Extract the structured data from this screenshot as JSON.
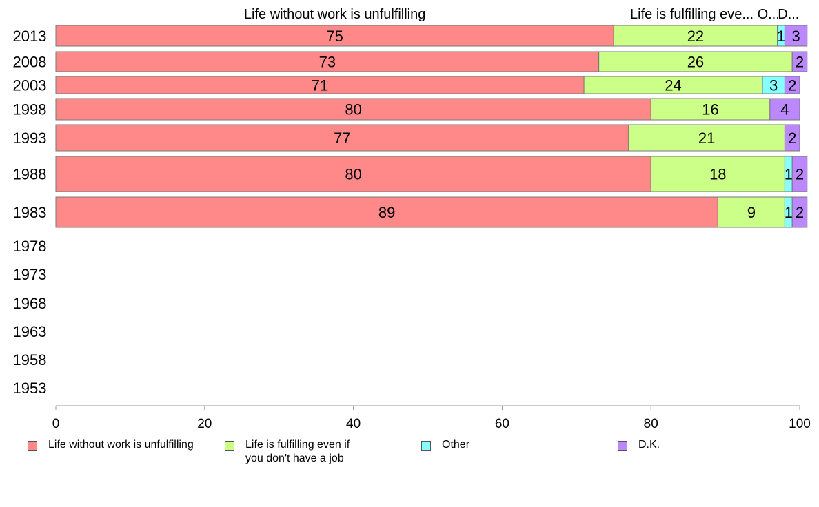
{
  "chart_data": {
    "type": "bar",
    "orientation": "horizontal",
    "stacked": true,
    "categories": [
      "2013",
      "2008",
      "2003",
      "1998",
      "1993",
      "1988",
      "1983",
      "1978",
      "1973",
      "1968",
      "1963",
      "1958",
      "1953"
    ],
    "series": [
      {
        "name": "Life without work is unfulfilling",
        "color": "#ff8888",
        "values": [
          75,
          73,
          71,
          80,
          77,
          80,
          89,
          null,
          null,
          null,
          null,
          null,
          null
        ],
        "labels": [
          "75",
          "73",
          "71",
          "80",
          "77",
          "80",
          "89",
          "",
          "",
          "",
          "",
          "",
          ""
        ]
      },
      {
        "name": "Life is fulfilling even if you don't have a job",
        "color": "#ccff88",
        "values": [
          22,
          26,
          24,
          16,
          21,
          18,
          9,
          null,
          null,
          null,
          null,
          null,
          null
        ],
        "labels": [
          "22",
          "26",
          "24",
          "16",
          "21",
          "18",
          "9",
          "",
          "",
          "",
          "",
          "",
          ""
        ]
      },
      {
        "name": "Other",
        "color": "#88ffff",
        "values": [
          1,
          0,
          3,
          0,
          0,
          1,
          1,
          null,
          null,
          null,
          null,
          null,
          null
        ],
        "labels": [
          "1",
          "",
          "3",
          "",
          "",
          "1",
          "1",
          "",
          "",
          "",
          "",
          "",
          ""
        ]
      },
      {
        "name": "D.K.",
        "color": "#bb88ff",
        "values": [
          3,
          2,
          2,
          4,
          2,
          2,
          2,
          null,
          null,
          null,
          null,
          null,
          null
        ],
        "labels": [
          "3",
          "2",
          "2",
          "4",
          "2",
          "2",
          "2",
          "",
          "",
          "",
          "",
          "",
          ""
        ]
      }
    ],
    "top_labels": [
      {
        "text": "Life without work is unfulfilling",
        "x": 37.5
      },
      {
        "text": "Life is fulfilling eve...",
        "x": 85.5
      },
      {
        "text": "O...",
        "x": 95.8
      },
      {
        "text": "D...",
        "x": 98.5
      }
    ],
    "xlim": [
      0,
      100
    ],
    "xticks": [
      0,
      20,
      40,
      60,
      80,
      100
    ],
    "xlabel": "",
    "ylabel": "",
    "title": "",
    "grid": false,
    "legend_position": "bottom"
  },
  "legend": {
    "items": [
      {
        "label": "Life without work is unfulfilling",
        "color": "#ff8888"
      },
      {
        "label": "Life is fulfilling even if\nyou don't have a job",
        "color": "#ccff88"
      },
      {
        "label": "Other",
        "color": "#88ffff"
      },
      {
        "label": "D.K.",
        "color": "#bb88ff"
      }
    ]
  }
}
